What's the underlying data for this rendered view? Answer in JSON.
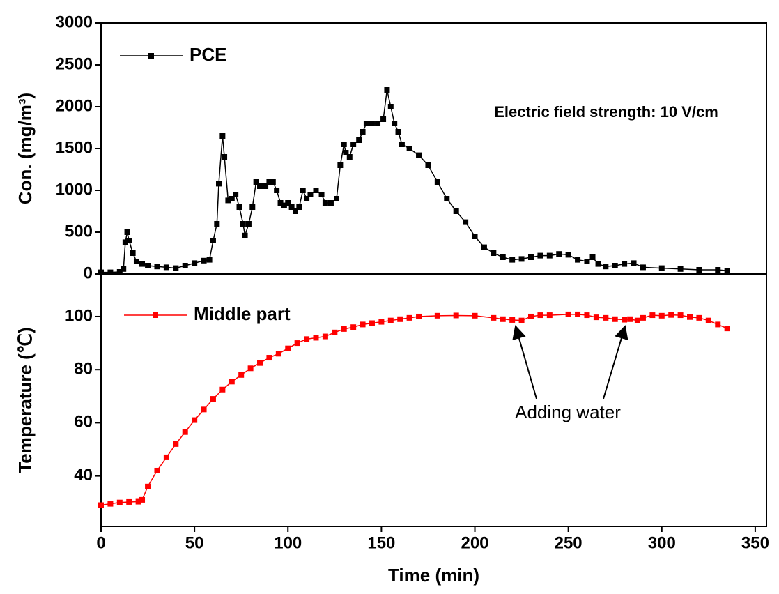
{
  "chart_data": [
    {
      "type": "line",
      "y_label": "Con. (mg/m³)",
      "annotation": "Electric field strength: 10 V/cm",
      "xlim": [
        0,
        356
      ],
      "ylim": [
        0,
        3000
      ],
      "yticks": [
        0,
        500,
        1000,
        1500,
        2000,
        2500,
        3000
      ],
      "x": [
        0,
        5,
        10,
        12,
        13,
        14,
        15,
        17,
        19,
        22,
        25,
        30,
        35,
        40,
        45,
        50,
        55,
        58,
        60,
        62,
        63,
        65,
        66,
        68,
        70,
        72,
        74,
        76,
        77,
        79,
        81,
        83,
        85,
        88,
        90,
        92,
        94,
        96,
        98,
        100,
        102,
        104,
        106,
        108,
        110,
        112,
        115,
        118,
        120,
        123,
        126,
        128,
        130,
        131,
        133,
        135,
        138,
        140,
        142,
        145,
        148,
        151,
        153,
        155,
        157,
        159,
        161,
        165,
        170,
        175,
        180,
        185,
        190,
        195,
        200,
        205,
        210,
        215,
        220,
        225,
        230,
        235,
        240,
        245,
        250,
        255,
        260,
        263,
        266,
        270,
        275,
        280,
        285,
        290,
        300,
        310,
        320,
        330,
        335
      ],
      "series": [
        {
          "name": "PCE",
          "color": "#000000",
          "values": [
            20,
            20,
            25,
            60,
            380,
            500,
            400,
            250,
            150,
            120,
            100,
            90,
            80,
            70,
            100,
            130,
            160,
            170,
            400,
            600,
            1080,
            1650,
            1400,
            880,
            900,
            950,
            800,
            600,
            460,
            600,
            800,
            1100,
            1050,
            1050,
            1100,
            1100,
            1000,
            850,
            820,
            850,
            800,
            750,
            800,
            1000,
            900,
            950,
            1000,
            950,
            850,
            850,
            900,
            1300,
            1550,
            1450,
            1400,
            1550,
            1600,
            1700,
            1800,
            1800,
            1800,
            1850,
            2200,
            2000,
            1800,
            1700,
            1550,
            1500,
            1420,
            1300,
            1100,
            900,
            750,
            620,
            450,
            320,
            250,
            200,
            170,
            180,
            200,
            220,
            220,
            240,
            230,
            170,
            150,
            200,
            120,
            90,
            100,
            120,
            130,
            80,
            70,
            60,
            50,
            50,
            40
          ]
        }
      ]
    },
    {
      "type": "line",
      "y_label": "Temperature (℃)",
      "x_label": "Time (min)",
      "annotation": "Adding water",
      "xlim": [
        0,
        356
      ],
      "ylim": [
        21,
        116
      ],
      "xticks": [
        0,
        50,
        100,
        150,
        200,
        250,
        300,
        350
      ],
      "yticks": [
        40,
        60,
        80,
        100
      ],
      "x": [
        0,
        5,
        10,
        15,
        20,
        22,
        25,
        30,
        35,
        40,
        45,
        50,
        55,
        60,
        65,
        70,
        75,
        80,
        85,
        90,
        95,
        100,
        105,
        110,
        115,
        120,
        125,
        130,
        135,
        140,
        145,
        150,
        155,
        160,
        165,
        170,
        180,
        190,
        200,
        210,
        215,
        220,
        225,
        230,
        235,
        240,
        250,
        255,
        260,
        265,
        270,
        275,
        280,
        283,
        287,
        290,
        295,
        300,
        305,
        310,
        315,
        320,
        325,
        330,
        335
      ],
      "series": [
        {
          "name": "Middle part",
          "color": "#ff0000",
          "values": [
            29,
            29.5,
            30,
            30.2,
            30.3,
            31,
            36,
            42,
            47,
            52,
            56.5,
            61,
            65,
            69,
            72.5,
            75.5,
            78,
            80.5,
            82.5,
            84.5,
            86,
            88,
            90,
            91.5,
            92,
            92.5,
            94,
            95.3,
            96,
            97,
            97.5,
            98,
            98.5,
            99,
            99.5,
            100,
            100.3,
            100.4,
            100.3,
            99.5,
            99,
            98.7,
            98.5,
            100,
            100.5,
            100.5,
            100.8,
            100.8,
            100.5,
            99.7,
            99.5,
            99,
            98.8,
            99,
            98.5,
            99.5,
            100.5,
            100.3,
            100.6,
            100.5,
            99.8,
            99.5,
            98.5,
            97,
            95.5
          ]
        }
      ]
    }
  ]
}
